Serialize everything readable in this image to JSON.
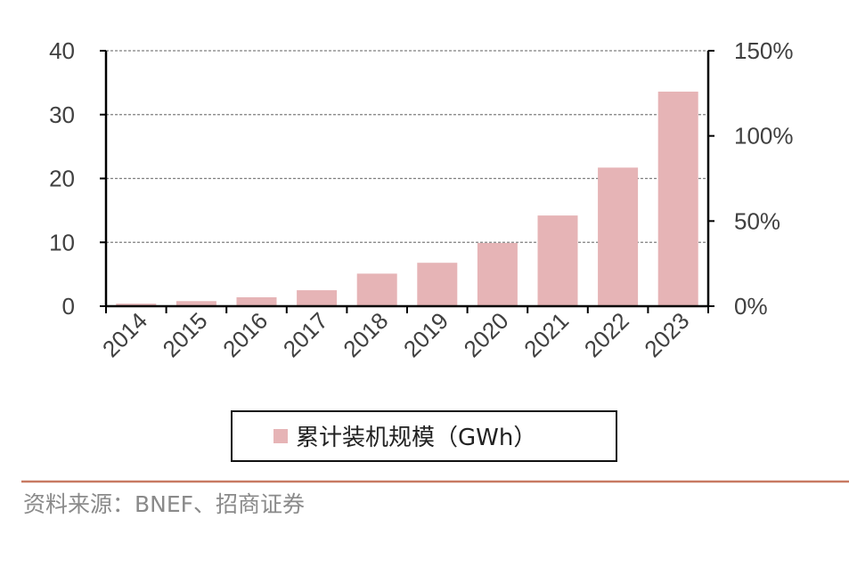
{
  "chart_data": {
    "type": "bar",
    "categories": [
      "2014",
      "2015",
      "2016",
      "2017",
      "2018",
      "2019",
      "2020",
      "2021",
      "2022",
      "2023"
    ],
    "series": [
      {
        "name": "累计装机规模（GWh）",
        "values": [
          0.4,
          0.8,
          1.4,
          2.5,
          5.1,
          6.8,
          9.9,
          14.2,
          21.7,
          33.6
        ],
        "color": "#e6b4b6"
      }
    ],
    "ylim": [
      0,
      40
    ],
    "yticks": [
      "0",
      "10",
      "20",
      "30",
      "40"
    ],
    "y2lim": [
      0,
      150
    ],
    "y2ticks": [
      "0%",
      "50%",
      "100%",
      "150%"
    ],
    "grid": true,
    "legend": {
      "position": "bottom",
      "label": "累计装机规模（GWh）"
    },
    "title": "",
    "xlabel": "",
    "ylabel": ""
  },
  "source": "资料来源：BNEF、招商证券",
  "colors": {
    "bar": "#e6b4b6",
    "axis": "#000000",
    "grid": "#7f7f7f",
    "rule": "#c87a62",
    "source_text": "#8a8a8a"
  }
}
